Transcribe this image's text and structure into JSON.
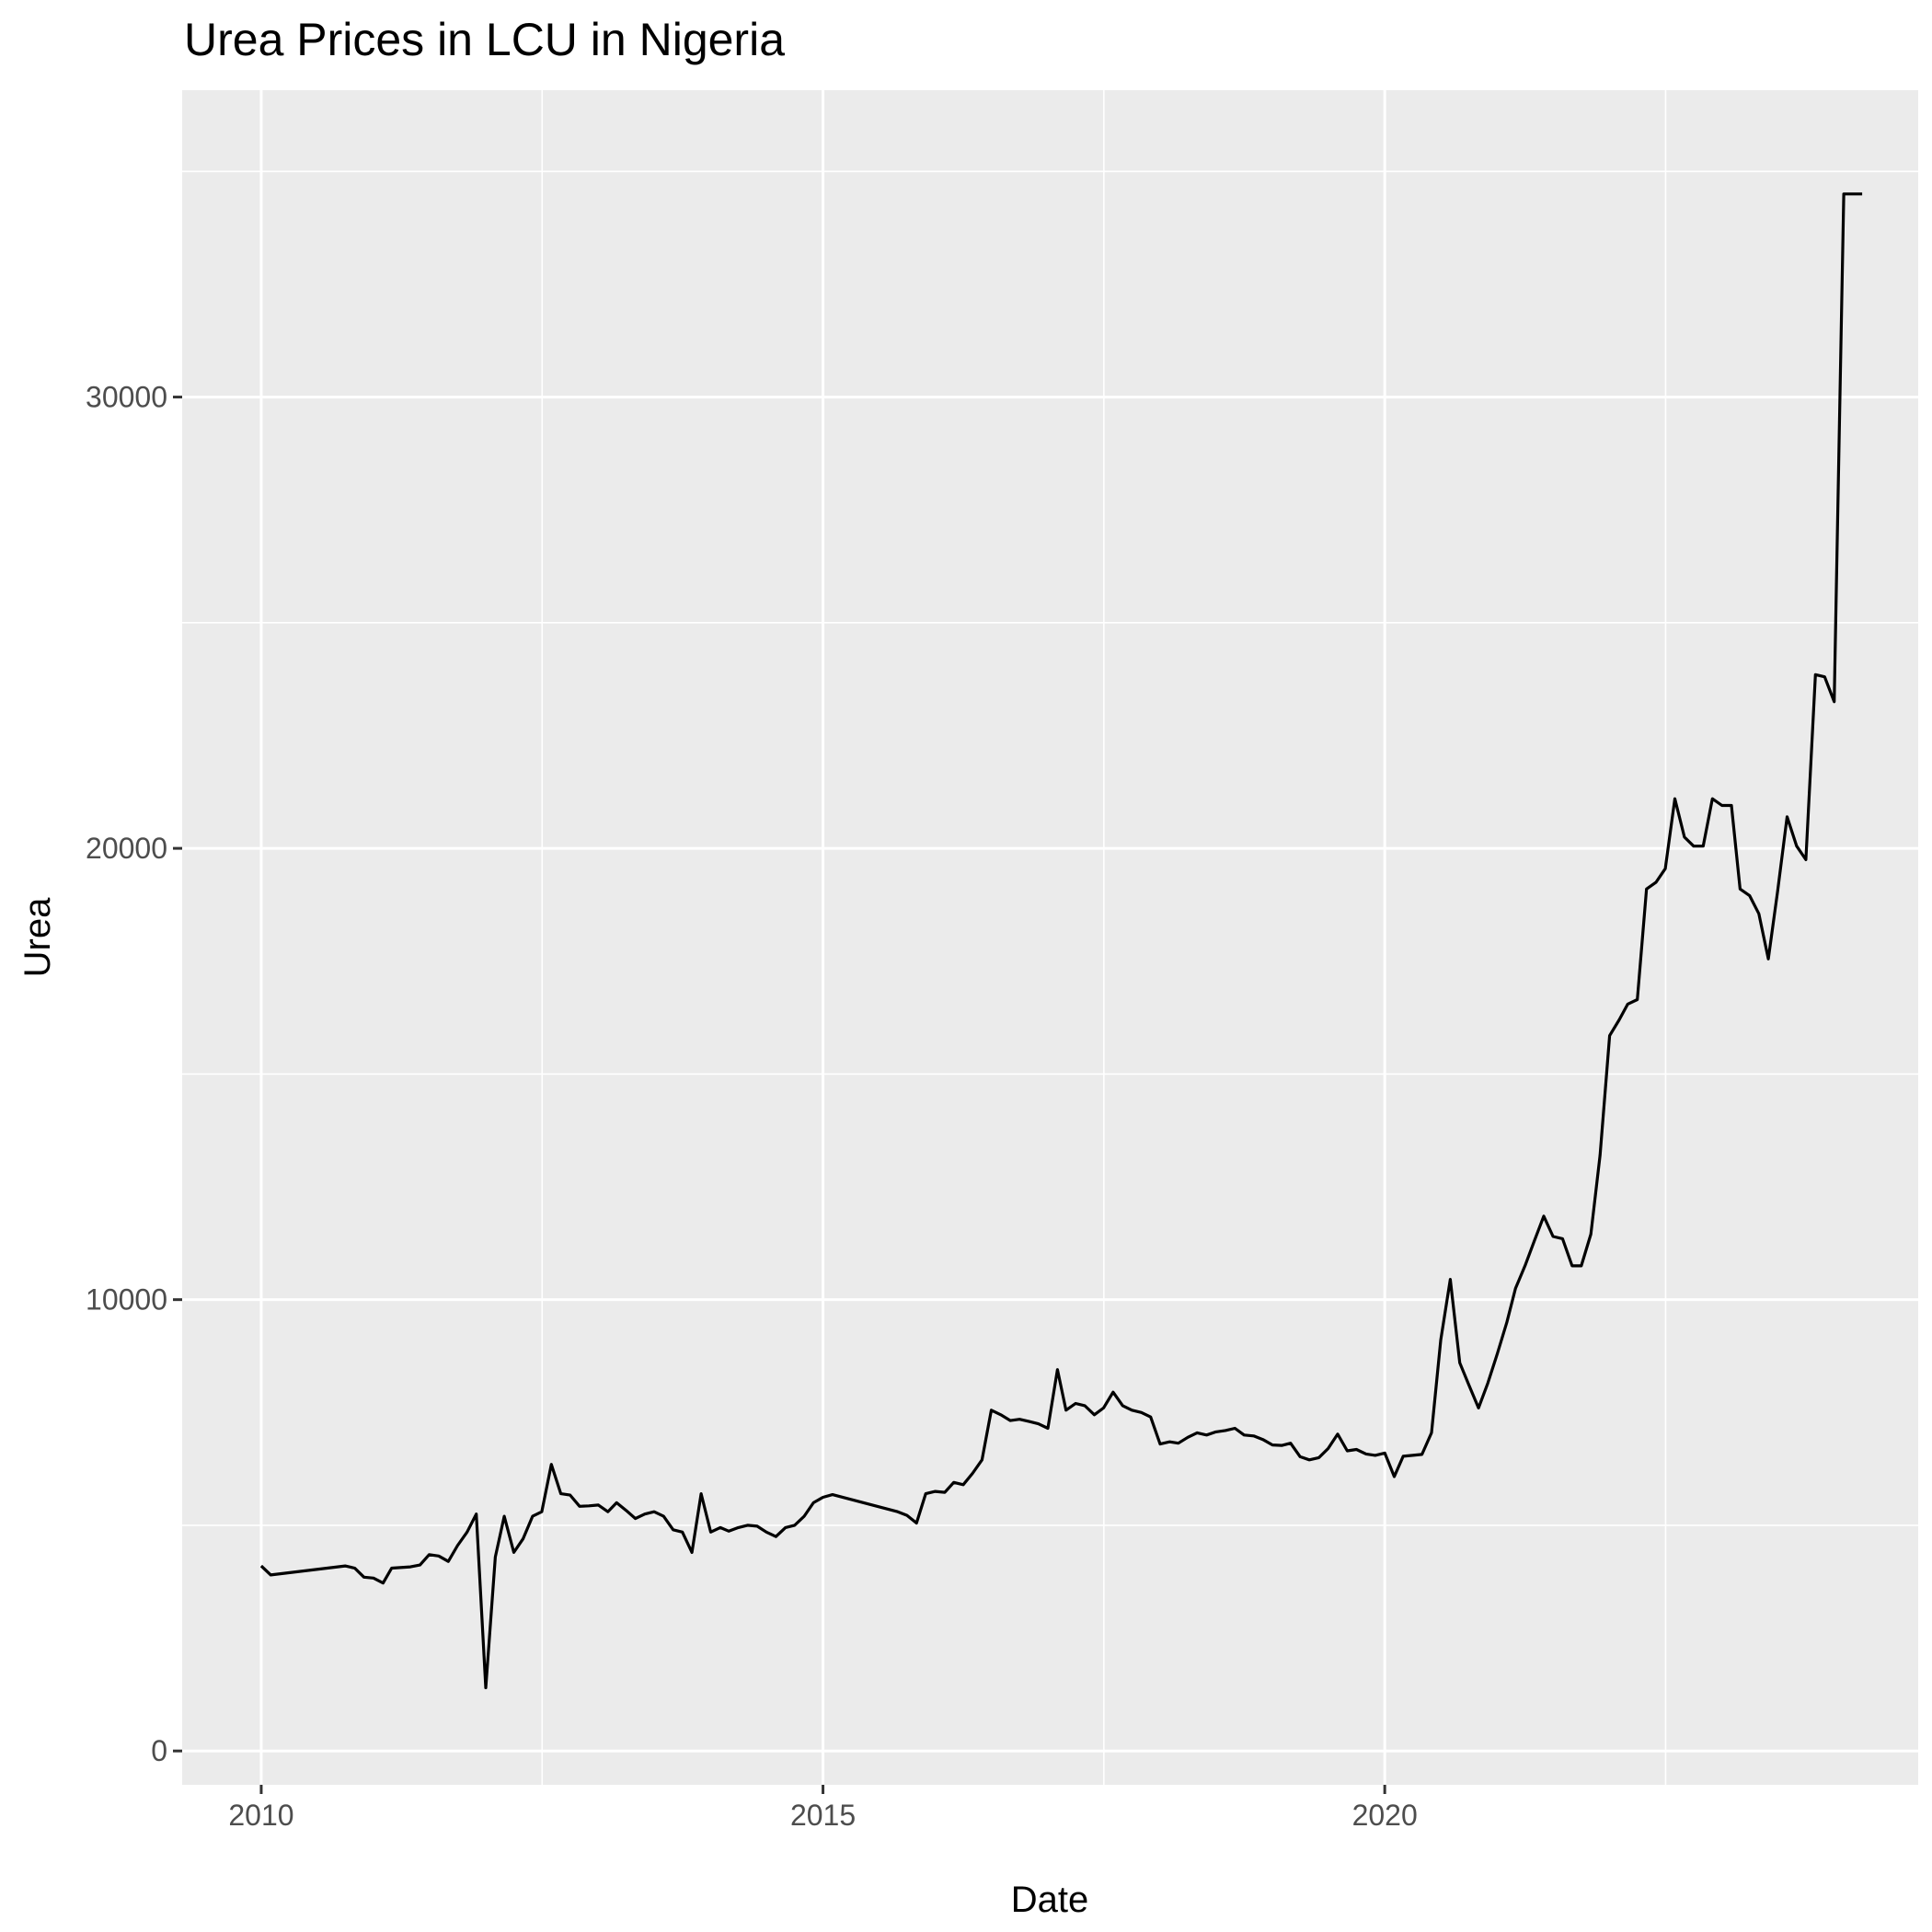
{
  "chart_data": {
    "type": "line",
    "title": "Urea Prices in LCU in Nigeria",
    "xlabel": "Date",
    "ylabel": "Urea",
    "x_range": [
      "2009-04-19",
      "2024-09-30"
    ],
    "ylim": [
      -750,
      36800
    ],
    "x_ticks": [
      {
        "date": "2010-01-01",
        "label": "2010"
      },
      {
        "date": "2015-01-01",
        "label": "2015"
      },
      {
        "date": "2020-01-01",
        "label": "2020"
      }
    ],
    "y_ticks": [
      {
        "value": 0,
        "label": "0"
      },
      {
        "value": 10000,
        "label": "10000"
      },
      {
        "value": 20000,
        "label": "20000"
      },
      {
        "value": 30000,
        "label": "30000"
      }
    ],
    "grid": true,
    "colors": {
      "panel": "#ebebeb",
      "grid": "#ffffff",
      "line": "#000000",
      "tick": "#333333"
    },
    "series": [
      {
        "points": [
          [
            "2010-01-01",
            4100
          ],
          [
            "2010-02-01",
            3900
          ],
          [
            "2010-10-01",
            4100
          ],
          [
            "2010-11-01",
            4050
          ],
          [
            "2010-12-01",
            3850
          ],
          [
            "2011-01-01",
            3830
          ],
          [
            "2011-02-01",
            3720
          ],
          [
            "2011-03-01",
            4050
          ],
          [
            "2011-05-01",
            4080
          ],
          [
            "2011-06-01",
            4120
          ],
          [
            "2011-07-01",
            4350
          ],
          [
            "2011-08-01",
            4320
          ],
          [
            "2011-09-01",
            4200
          ],
          [
            "2011-10-01",
            4550
          ],
          [
            "2011-11-01",
            4850
          ],
          [
            "2011-12-01",
            5250
          ],
          [
            "2012-01-01",
            1400
          ],
          [
            "2012-02-01",
            4300
          ],
          [
            "2012-03-01",
            5200
          ],
          [
            "2012-04-01",
            4400
          ],
          [
            "2012-05-01",
            4700
          ],
          [
            "2012-06-01",
            5200
          ],
          [
            "2012-07-01",
            5300
          ],
          [
            "2012-08-01",
            6350
          ],
          [
            "2012-09-01",
            5700
          ],
          [
            "2012-10-01",
            5670
          ],
          [
            "2012-11-01",
            5420
          ],
          [
            "2012-12-01",
            5430
          ],
          [
            "2013-01-01",
            5450
          ],
          [
            "2013-02-01",
            5300
          ],
          [
            "2013-03-01",
            5500
          ],
          [
            "2013-04-01",
            5330
          ],
          [
            "2013-05-01",
            5150
          ],
          [
            "2013-06-01",
            5250
          ],
          [
            "2013-07-01",
            5300
          ],
          [
            "2013-08-01",
            5200
          ],
          [
            "2013-09-01",
            4900
          ],
          [
            "2013-10-01",
            4850
          ],
          [
            "2013-11-01",
            4400
          ],
          [
            "2013-12-01",
            5700
          ],
          [
            "2014-01-01",
            4850
          ],
          [
            "2014-02-01",
            4950
          ],
          [
            "2014-03-01",
            4870
          ],
          [
            "2014-04-01",
            4950
          ],
          [
            "2014-05-01",
            5000
          ],
          [
            "2014-06-01",
            4980
          ],
          [
            "2014-07-01",
            4850
          ],
          [
            "2014-08-01",
            4750
          ],
          [
            "2014-09-01",
            4950
          ],
          [
            "2014-10-01",
            5000
          ],
          [
            "2014-11-01",
            5200
          ],
          [
            "2014-12-01",
            5500
          ],
          [
            "2015-01-01",
            5620
          ],
          [
            "2015-02-01",
            5680
          ],
          [
            "2015-09-01",
            5300
          ],
          [
            "2015-10-01",
            5220
          ],
          [
            "2015-11-01",
            5050
          ],
          [
            "2015-12-01",
            5700
          ],
          [
            "2016-01-01",
            5750
          ],
          [
            "2016-02-01",
            5730
          ],
          [
            "2016-03-01",
            5950
          ],
          [
            "2016-04-01",
            5900
          ],
          [
            "2016-05-01",
            6150
          ],
          [
            "2016-06-01",
            6450
          ],
          [
            "2016-07-01",
            7550
          ],
          [
            "2016-08-01",
            7450
          ],
          [
            "2016-09-01",
            7320
          ],
          [
            "2016-10-01",
            7350
          ],
          [
            "2016-11-01",
            7300
          ],
          [
            "2016-12-01",
            7250
          ],
          [
            "2017-01-01",
            7150
          ],
          [
            "2017-02-01",
            8450
          ],
          [
            "2017-03-01",
            7550
          ],
          [
            "2017-04-01",
            7700
          ],
          [
            "2017-05-01",
            7650
          ],
          [
            "2017-06-01",
            7450
          ],
          [
            "2017-07-01",
            7600
          ],
          [
            "2017-08-01",
            7950
          ],
          [
            "2017-09-01",
            7650
          ],
          [
            "2017-10-01",
            7550
          ],
          [
            "2017-11-01",
            7500
          ],
          [
            "2017-12-01",
            7400
          ],
          [
            "2018-01-01",
            6800
          ],
          [
            "2018-02-01",
            6850
          ],
          [
            "2018-03-01",
            6820
          ],
          [
            "2018-04-01",
            6950
          ],
          [
            "2018-05-01",
            7050
          ],
          [
            "2018-06-01",
            7000
          ],
          [
            "2018-07-01",
            7070
          ],
          [
            "2018-08-01",
            7100
          ],
          [
            "2018-09-01",
            7150
          ],
          [
            "2018-10-01",
            7000
          ],
          [
            "2018-11-01",
            6980
          ],
          [
            "2018-12-01",
            6900
          ],
          [
            "2019-01-01",
            6780
          ],
          [
            "2019-02-01",
            6770
          ],
          [
            "2019-03-01",
            6820
          ],
          [
            "2019-04-01",
            6520
          ],
          [
            "2019-05-01",
            6450
          ],
          [
            "2019-06-01",
            6500
          ],
          [
            "2019-07-01",
            6700
          ],
          [
            "2019-08-01",
            7020
          ],
          [
            "2019-09-01",
            6650
          ],
          [
            "2019-10-01",
            6680
          ],
          [
            "2019-11-01",
            6580
          ],
          [
            "2019-12-01",
            6550
          ],
          [
            "2020-01-01",
            6600
          ],
          [
            "2020-02-01",
            6080
          ],
          [
            "2020-03-01",
            6530
          ],
          [
            "2020-04-01",
            6550
          ],
          [
            "2020-05-01",
            6570
          ],
          [
            "2020-06-01",
            7050
          ],
          [
            "2020-07-01",
            9100
          ],
          [
            "2020-08-01",
            10450
          ],
          [
            "2020-09-01",
            8600
          ],
          [
            "2020-10-01",
            8100
          ],
          [
            "2020-11-01",
            7600
          ],
          [
            "2020-12-01",
            8150
          ],
          [
            "2021-01-01",
            8800
          ],
          [
            "2021-02-01",
            9500
          ],
          [
            "2021-03-01",
            10250
          ],
          [
            "2021-04-01",
            10750
          ],
          [
            "2021-05-01",
            11300
          ],
          [
            "2021-06-01",
            11850
          ],
          [
            "2021-07-01",
            11400
          ],
          [
            "2021-08-01",
            11350
          ],
          [
            "2021-09-01",
            10750
          ],
          [
            "2021-10-01",
            10750
          ],
          [
            "2021-11-01",
            11450
          ],
          [
            "2021-12-01",
            13200
          ],
          [
            "2022-01-01",
            15850
          ],
          [
            "2022-02-01",
            16200
          ],
          [
            "2022-03-01",
            16550
          ],
          [
            "2022-04-01",
            16650
          ],
          [
            "2022-05-01",
            19100
          ],
          [
            "2022-06-01",
            19250
          ],
          [
            "2022-07-01",
            19550
          ],
          [
            "2022-08-01",
            21100
          ],
          [
            "2022-09-01",
            20250
          ],
          [
            "2022-10-01",
            20050
          ],
          [
            "2022-11-01",
            20050
          ],
          [
            "2022-12-01",
            21100
          ],
          [
            "2023-01-01",
            20950
          ],
          [
            "2023-02-01",
            20950
          ],
          [
            "2023-03-01",
            19100
          ],
          [
            "2023-04-01",
            18950
          ],
          [
            "2023-05-01",
            18550
          ],
          [
            "2023-06-01",
            17550
          ],
          [
            "2023-07-01",
            19050
          ],
          [
            "2023-08-01",
            20700
          ],
          [
            "2023-09-01",
            20050
          ],
          [
            "2023-10-01",
            19750
          ],
          [
            "2023-11-01",
            23850
          ],
          [
            "2023-12-01",
            23800
          ],
          [
            "2024-01-01",
            23250
          ],
          [
            "2024-02-01",
            34500
          ],
          [
            "2024-04-01",
            34500
          ]
        ]
      }
    ]
  }
}
